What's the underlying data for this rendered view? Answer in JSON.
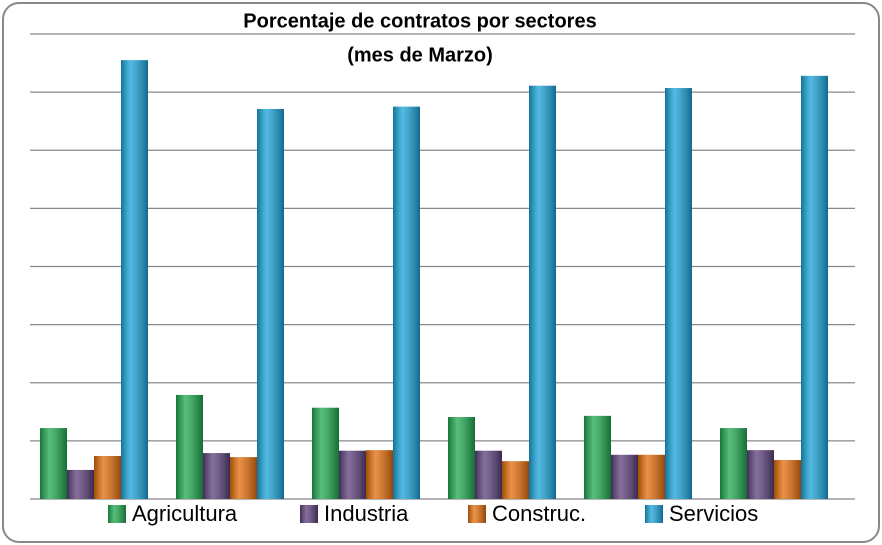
{
  "chart_data": {
    "type": "bar",
    "title": "Porcentaje de contratos por sectores",
    "subtitle": "(mes de Marzo)",
    "categories": [
      null,
      null,
      null,
      null,
      null,
      null
    ],
    "series": [
      {
        "name": "Agricultura",
        "color": "#1fa84f",
        "values": [
          12.2,
          17.9,
          15.7,
          14.1,
          14.3,
          12.2
        ]
      },
      {
        "name": "Industria",
        "color": "#5b3f7a",
        "values": [
          5,
          7.9,
          8.3,
          8.3,
          7.6,
          8.4
        ]
      },
      {
        "name": "Construc.",
        "color": "#e36c0a",
        "values": [
          7.4,
          7.2,
          8.4,
          6.5,
          7.6,
          6.7
        ]
      },
      {
        "name": "Servicios",
        "color": "#1aa3d9",
        "values": [
          75.5,
          67.1,
          67.5,
          71.1,
          70.7,
          72.8
        ]
      }
    ],
    "ylim": [
      0,
      80
    ],
    "yticks": [
      0,
      10,
      20,
      30,
      40,
      50,
      60,
      70,
      80
    ],
    "grid": true
  }
}
